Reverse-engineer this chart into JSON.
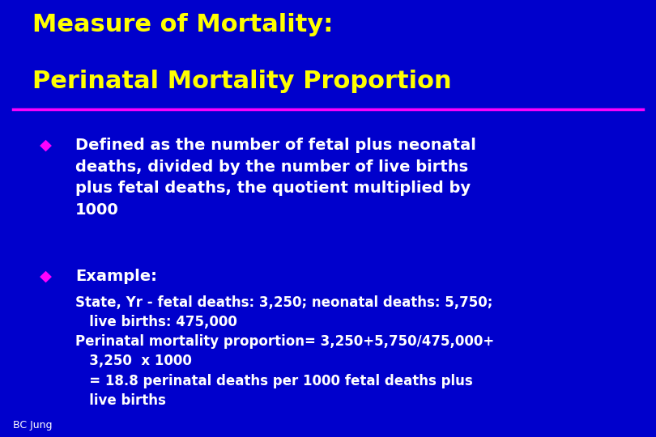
{
  "background_color": "#0000cc",
  "title_line1": "Measure of Mortality:",
  "title_line2": "Perinatal Mortality Proportion",
  "title_color": "#ffff00",
  "title_fontsize": 22,
  "separator_color": "#ff00ff",
  "bullet_color": "#ff00ff",
  "bullet_symbol": "◆",
  "body_color": "#ffffff",
  "body_fontsize": 14,
  "sub_fontsize": 12,
  "footer_text": "BC Jung",
  "footer_color": "#ffffff",
  "footer_fontsize": 9,
  "bullet1_text": "Defined as the number of fetal plus neonatal\ndeaths, divided by the number of live births\nplus fetal deaths, the quotient multiplied by\n1000",
  "bullet2_text": "Example:",
  "sub_text_line1": "State, Yr - fetal deaths: 3,250; neonatal deaths: 5,750;",
  "sub_text_line2": "   live births: 475,000",
  "sub_text_line3": "Perinatal mortality proportion= 3,250+5,750/475,000+",
  "sub_text_line4": "   3,250  x 1000",
  "sub_text_line5": "   = 18.8 perinatal deaths per 1000 fetal deaths plus",
  "sub_text_line6": "   live births"
}
